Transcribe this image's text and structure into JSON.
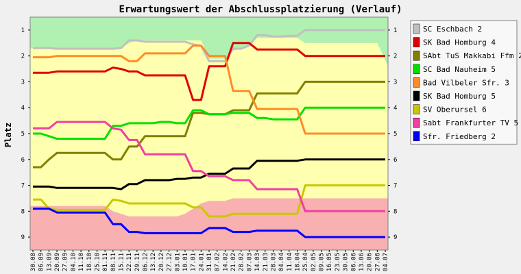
{
  "chart_data": {
    "type": "line",
    "title": "Erwartungswert der Abschlussplatzierung (Verlauf)",
    "ylabel": "Platz",
    "xlabel": "",
    "ylim": [
      0.5,
      9.5
    ],
    "y_reversed": true,
    "yticks": [
      1,
      2,
      3,
      4,
      5,
      6,
      7,
      8,
      9
    ],
    "x": [
      "30.08",
      "06.09",
      "13.09",
      "20.09",
      "27.09",
      "04.10",
      "11.10",
      "18.10",
      "25.10",
      "01.11",
      "08.11",
      "15.11",
      "22.11",
      "29.11",
      "06.12",
      "13.12",
      "20.12",
      "27.12",
      "03.01",
      "10.01",
      "17.01",
      "24.01",
      "31.01",
      "07.02",
      "14.02",
      "21.02",
      "28.02",
      "07.03",
      "14.03",
      "21.03",
      "28.03",
      "04.04",
      "11.04",
      "18.04",
      "25.04",
      "02.05",
      "09.05",
      "16.05",
      "23.05",
      "30.05",
      "06.06",
      "13.06",
      "20.06",
      "27.06",
      "04.07"
    ],
    "bands": {
      "green": "#b0f0b0",
      "yellow": "#ffffb0",
      "red": "#f8b0b0",
      "green_bottom": [
        1.7,
        1.7,
        1.7,
        1.7,
        1.7,
        1.7,
        1.7,
        1.7,
        1.7,
        1.7,
        1.7,
        1.7,
        1.5,
        1.4,
        1.4,
        1.4,
        1.4,
        1.4,
        1.4,
        1.4,
        1.4,
        1.4,
        2.1,
        2.1,
        2.1,
        1.8,
        1.7,
        1.6,
        1.3,
        1.3,
        1.3,
        1.3,
        1.3,
        1.3,
        1.5,
        1.5,
        1.5,
        1.5,
        1.5,
        1.5,
        1.5,
        1.5,
        1.5,
        1.5,
        2.4
      ],
      "red_top": [
        7.8,
        7.8,
        7.8,
        7.8,
        7.8,
        7.8,
        7.8,
        7.8,
        7.8,
        7.8,
        8.0,
        8.1,
        8.2,
        8.2,
        8.2,
        8.2,
        8.2,
        8.2,
        8.2,
        8.1,
        7.9,
        7.7,
        7.6,
        7.6,
        7.6,
        7.5,
        7.5,
        7.5,
        7.5,
        7.5,
        7.5,
        7.5,
        7.5,
        7.5,
        7.5,
        7.5,
        7.5,
        7.5,
        7.5,
        7.5,
        7.5,
        7.5,
        7.5,
        7.5,
        7.5
      ]
    },
    "legend_position": "right",
    "series": [
      {
        "name": "SC Eschbach 2",
        "color": "#c0c0c0",
        "values": [
          1.7,
          1.7,
          1.7,
          1.72,
          1.72,
          1.72,
          1.72,
          1.72,
          1.72,
          1.72,
          1.72,
          1.7,
          1.4,
          1.4,
          1.45,
          1.45,
          1.45,
          1.45,
          1.45,
          1.45,
          1.55,
          1.6,
          2.2,
          2.2,
          2.2,
          1.72,
          1.72,
          1.6,
          1.2,
          1.2,
          1.25,
          1.25,
          1.22,
          1.22,
          1.0,
          1.0,
          1.0,
          1.0,
          1.0,
          1.0,
          1.0,
          1.0,
          1.0,
          1.0,
          1.0
        ]
      },
      {
        "name": "SK Bad Homburg 4",
        "color": "#e00000",
        "values": [
          2.65,
          2.65,
          2.65,
          2.6,
          2.6,
          2.6,
          2.6,
          2.6,
          2.6,
          2.6,
          2.45,
          2.5,
          2.6,
          2.6,
          2.75,
          2.75,
          2.75,
          2.75,
          2.75,
          2.75,
          3.7,
          3.7,
          2.4,
          2.4,
          2.4,
          1.5,
          1.5,
          1.5,
          1.75,
          1.75,
          1.75,
          1.75,
          1.75,
          1.75,
          2.0,
          2.0,
          2.0,
          2.0,
          2.0,
          2.0,
          2.0,
          2.0,
          2.0,
          2.0,
          2.0
        ]
      },
      {
        "name": "SAbt TuS Makkabi Ffm 2",
        "color": "#808000",
        "values": [
          6.3,
          6.3,
          6.0,
          5.75,
          5.75,
          5.75,
          5.75,
          5.75,
          5.75,
          5.75,
          6.0,
          6.0,
          5.5,
          5.5,
          5.1,
          5.1,
          5.1,
          5.1,
          5.1,
          5.1,
          4.2,
          4.2,
          4.25,
          4.25,
          4.25,
          4.1,
          4.1,
          4.1,
          3.45,
          3.45,
          3.45,
          3.45,
          3.45,
          3.45,
          3.0,
          3.0,
          3.0,
          3.0,
          3.0,
          3.0,
          3.0,
          3.0,
          3.0,
          3.0,
          3.0
        ]
      },
      {
        "name": "SC Bad Nauheim 5",
        "color": "#00e000",
        "values": [
          5.0,
          5.0,
          5.1,
          5.2,
          5.2,
          5.2,
          5.2,
          5.2,
          5.2,
          5.2,
          4.7,
          4.7,
          4.6,
          4.6,
          4.6,
          4.6,
          4.55,
          4.55,
          4.6,
          4.6,
          4.1,
          4.1,
          4.25,
          4.25,
          4.25,
          4.2,
          4.2,
          4.2,
          4.4,
          4.4,
          4.45,
          4.45,
          4.45,
          4.45,
          4.0,
          4.0,
          4.0,
          4.0,
          4.0,
          4.0,
          4.0,
          4.0,
          4.0,
          4.0,
          4.0
        ]
      },
      {
        "name": "Bad Vilbeler Sfr. 3",
        "color": "#ff8c28",
        "values": [
          2.05,
          2.05,
          2.05,
          2.0,
          2.0,
          2.0,
          2.0,
          2.0,
          2.0,
          2.0,
          2.0,
          2.0,
          2.2,
          2.2,
          1.9,
          1.9,
          1.9,
          1.9,
          1.9,
          1.9,
          1.6,
          1.6,
          2.0,
          2.0,
          2.0,
          3.35,
          3.35,
          3.35,
          4.05,
          4.05,
          4.05,
          4.05,
          4.05,
          4.05,
          5.0,
          5.0,
          5.0,
          5.0,
          5.0,
          5.0,
          5.0,
          5.0,
          5.0,
          5.0,
          5.0
        ]
      },
      {
        "name": "SK Bad Homburg 5",
        "color": "#000000",
        "values": [
          7.05,
          7.05,
          7.05,
          7.1,
          7.1,
          7.1,
          7.1,
          7.1,
          7.1,
          7.1,
          7.1,
          7.15,
          6.95,
          6.95,
          6.8,
          6.8,
          6.8,
          6.8,
          6.75,
          6.75,
          6.7,
          6.7,
          6.55,
          6.55,
          6.55,
          6.35,
          6.35,
          6.35,
          6.05,
          6.05,
          6.05,
          6.05,
          6.05,
          6.05,
          6.0,
          6.0,
          6.0,
          6.0,
          6.0,
          6.0,
          6.0,
          6.0,
          6.0,
          6.0,
          6.0
        ]
      },
      {
        "name": "SV Oberursel 6",
        "color": "#c8c800",
        "values": [
          7.55,
          7.55,
          7.9,
          7.95,
          7.95,
          7.95,
          7.95,
          7.95,
          7.95,
          7.95,
          7.55,
          7.6,
          7.7,
          7.7,
          7.7,
          7.7,
          7.7,
          7.7,
          7.7,
          7.7,
          7.85,
          7.85,
          8.2,
          8.2,
          8.2,
          8.1,
          8.1,
          8.1,
          8.1,
          8.1,
          8.1,
          8.1,
          8.1,
          8.1,
          7.0,
          7.0,
          7.0,
          7.0,
          7.0,
          7.0,
          7.0,
          7.0,
          7.0,
          7.0,
          7.0
        ]
      },
      {
        "name": "Sabt Frankfurter TV 5",
        "color": "#f040a0",
        "values": [
          4.8,
          4.8,
          4.8,
          4.55,
          4.55,
          4.55,
          4.55,
          4.55,
          4.55,
          4.55,
          4.8,
          4.85,
          5.25,
          5.25,
          5.8,
          5.8,
          5.8,
          5.8,
          5.8,
          5.8,
          6.45,
          6.45,
          6.65,
          6.65,
          6.65,
          6.8,
          6.8,
          6.8,
          7.15,
          7.15,
          7.15,
          7.15,
          7.15,
          7.15,
          8.0,
          8.0,
          8.0,
          8.0,
          8.0,
          8.0,
          8.0,
          8.0,
          8.0,
          8.0,
          8.0
        ]
      },
      {
        "name": "Sfr. Friedberg 2",
        "color": "#0000ff",
        "values": [
          7.9,
          7.9,
          7.9,
          8.05,
          8.05,
          8.05,
          8.05,
          8.05,
          8.05,
          8.05,
          8.5,
          8.5,
          8.8,
          8.8,
          8.85,
          8.85,
          8.85,
          8.85,
          8.85,
          8.85,
          8.85,
          8.85,
          8.65,
          8.65,
          8.65,
          8.8,
          8.8,
          8.8,
          8.75,
          8.75,
          8.75,
          8.75,
          8.75,
          8.75,
          9.0,
          9.0,
          9.0,
          9.0,
          9.0,
          9.0,
          9.0,
          9.0,
          9.0,
          9.0,
          9.0
        ]
      }
    ]
  }
}
